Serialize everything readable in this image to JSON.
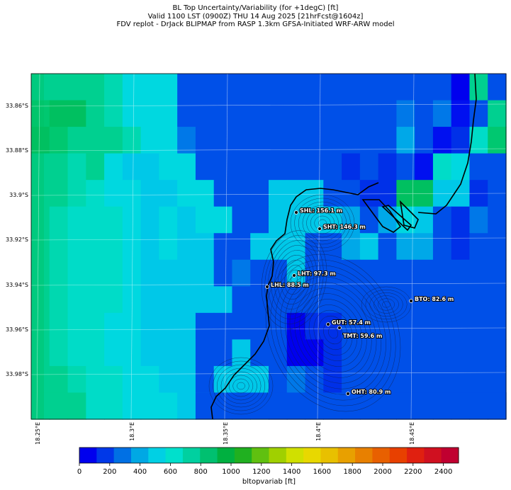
{
  "title": {
    "line1": "BL Top Uncertainty/Variability (for +1degC) [ft]",
    "line2": "Valid 1100 LST (0900Z) THU 14 Aug 2025 [21hrFcst@1604z]",
    "line3": "FDV replot - DrJack BLIPMAP from RASP 1.3km GFSA-Initiated WRF-ARW model"
  },
  "map": {
    "lat_labels": [
      "33.86°S",
      "33.88°S",
      "33.9°S",
      "33.92°S",
      "33.94°S",
      "33.96°S",
      "33.98°S"
    ],
    "lon_labels": [
      "18.25°E",
      "18.3°E",
      "18.35°E",
      "18.4°E",
      "18.45°E"
    ],
    "stations": [
      {
        "label": "SHL: 156.1 m"
      },
      {
        "label": "SHT: 146.3 m"
      },
      {
        "label": "LHT: 97.3 m"
      },
      {
        "label": "LHL: 88.5 m"
      },
      {
        "label": "BTO: 82.6 m"
      },
      {
        "label": "GUT: 57.4 m"
      },
      {
        "label": "TMT: 59.6 m"
      },
      {
        "label": "OHT: 80.9 m"
      }
    ]
  },
  "colorbar": {
    "label": "bltopvariab [ft]",
    "ticks": [
      "0",
      "200",
      "400",
      "600",
      "800",
      "1000",
      "1200",
      "1400",
      "1600",
      "1800",
      "2000",
      "2200",
      "2400"
    ],
    "range": [
      0,
      2500
    ],
    "colors": [
      "#0000ee",
      "#0038e8",
      "#0070e4",
      "#00a8e4",
      "#00d0e4",
      "#00e0cc",
      "#00d0a0",
      "#00c070",
      "#00b040",
      "#20b020",
      "#60c010",
      "#a0d000",
      "#d0e000",
      "#e8d800",
      "#e8c000",
      "#e8a000",
      "#e88000",
      "#e86000",
      "#e84000",
      "#e02010",
      "#d01020",
      "#c00030"
    ]
  }
}
